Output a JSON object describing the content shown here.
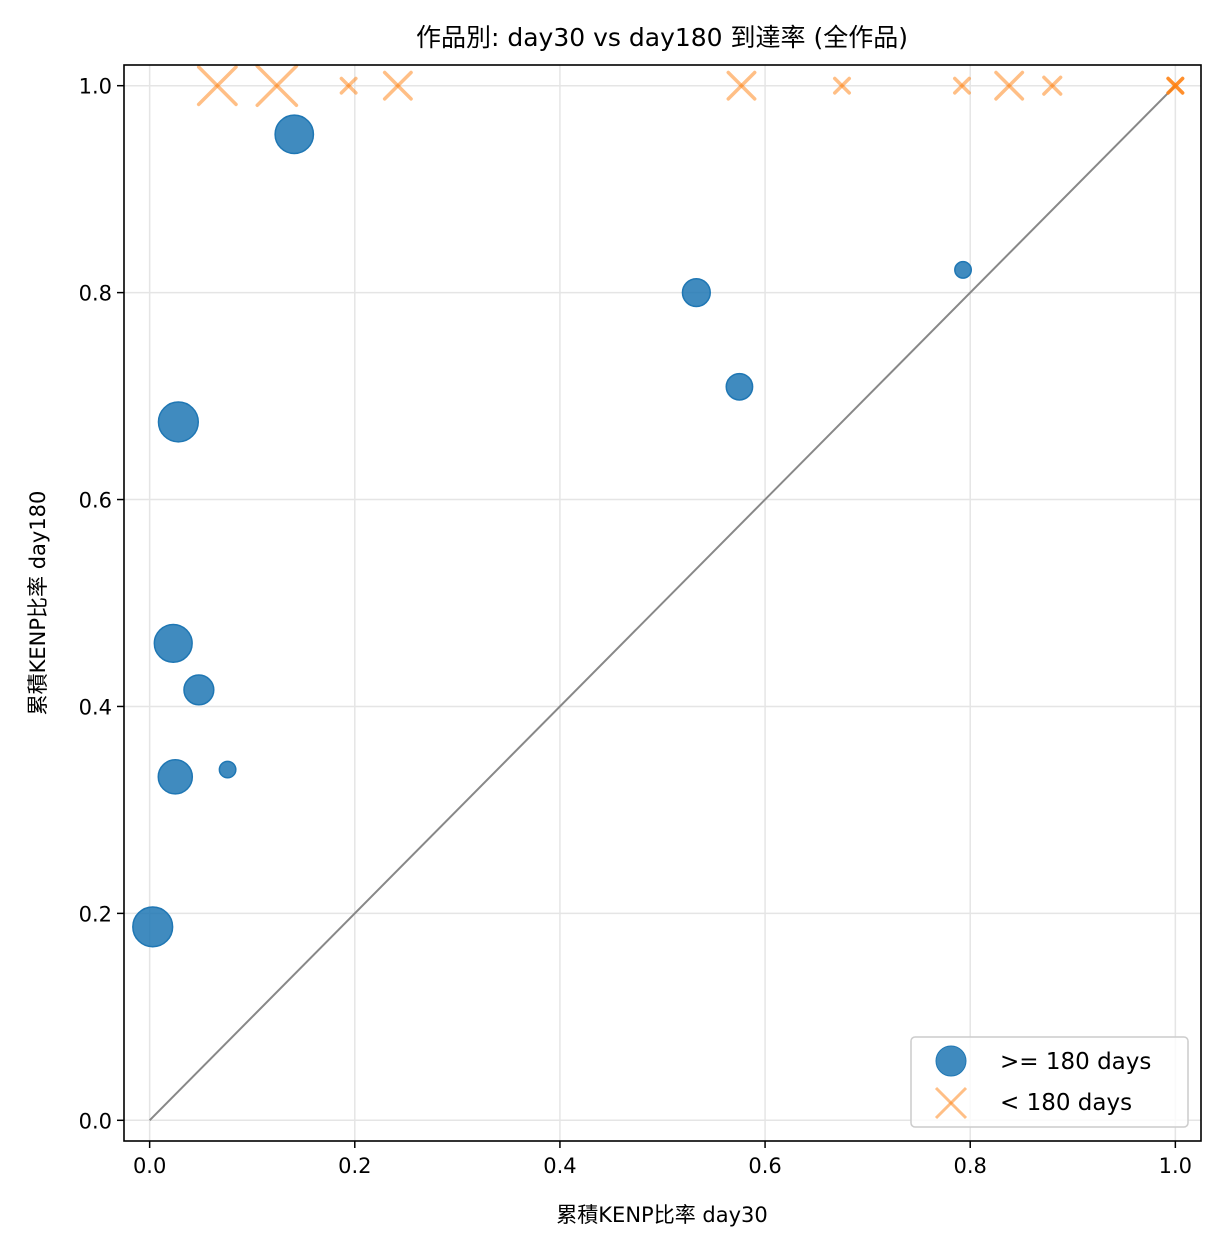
{
  "chart_data": {
    "type": "scatter",
    "title": "作品別: day30 vs day180 到達率 (全作品)",
    "xlabel": "累積KENP比率 day30",
    "ylabel": "累積KENP比率 day180",
    "xlim": [
      -0.025,
      1.025
    ],
    "ylim": [
      -0.02,
      1.02
    ],
    "xticks": [
      "0.0",
      "0.2",
      "0.4",
      "0.6",
      "0.8",
      "1.0"
    ],
    "yticks": [
      "0.0",
      "0.2",
      "0.4",
      "0.6",
      "0.8",
      "1.0"
    ],
    "grid": true,
    "legend_position": "lower-right",
    "reference_line": {
      "type": "y=x",
      "color": "#888888"
    },
    "series": [
      {
        "name": ">= 180 days",
        "marker": "circle",
        "color": "#1f77b4",
        "points": [
          {
            "x": 0.141,
            "y": 0.953,
            "size": 190
          },
          {
            "x": 0.533,
            "y": 0.8,
            "size": 100
          },
          {
            "x": 0.793,
            "y": 0.822,
            "size": 35
          },
          {
            "x": 0.575,
            "y": 0.709,
            "size": 90
          },
          {
            "x": 0.028,
            "y": 0.675,
            "size": 205
          },
          {
            "x": 0.023,
            "y": 0.461,
            "size": 185
          },
          {
            "x": 0.048,
            "y": 0.416,
            "size": 115
          },
          {
            "x": 0.025,
            "y": 0.332,
            "size": 150
          },
          {
            "x": 0.076,
            "y": 0.339,
            "size": 35
          },
          {
            "x": 0.003,
            "y": 0.187,
            "size": 205
          }
        ]
      },
      {
        "name": "< 180 days",
        "marker": "x",
        "color": "#ff7f0e",
        "points": [
          {
            "x": 0.066,
            "y": 1.0,
            "size": 200
          },
          {
            "x": 0.124,
            "y": 1.0,
            "size": 220
          },
          {
            "x": 0.194,
            "y": 1.0,
            "size": 30
          },
          {
            "x": 0.242,
            "y": 1.0,
            "size": 100
          },
          {
            "x": 0.577,
            "y": 1.0,
            "size": 100
          },
          {
            "x": 0.675,
            "y": 1.0,
            "size": 30
          },
          {
            "x": 0.792,
            "y": 1.0,
            "size": 30
          },
          {
            "x": 0.838,
            "y": 1.0,
            "size": 100
          },
          {
            "x": 0.88,
            "y": 1.0,
            "size": 40
          },
          {
            "x": 1.0,
            "y": 1.0,
            "size": 30
          },
          {
            "x": 1.0,
            "y": 1.0,
            "size": 30
          },
          {
            "x": 1.0,
            "y": 1.0,
            "size": 30
          }
        ]
      }
    ]
  }
}
